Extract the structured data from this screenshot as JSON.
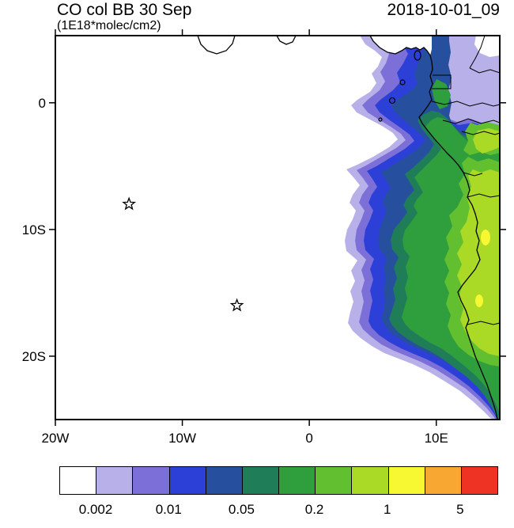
{
  "header": {
    "title": "CO col BB 30 Sep",
    "units": "(1E18*molec/cm2)",
    "datetime": "2018-10-01_09"
  },
  "chart_data": {
    "type": "heatmap",
    "title": "CO col BB 30 Sep",
    "units_label": "(1E18*molec/cm2)",
    "timestamp_label": "2018-10-01_09",
    "description": "Filled-contour lat-lon map of biomass-burning CO column over the South Atlantic and central-southern Africa; plume extends west from the Angola/Congo coast",
    "lon_range": [
      -20,
      15
    ],
    "lat_range": [
      5.3,
      -25.0
    ],
    "x_ticks": [
      {
        "lon": -20,
        "label": "20W"
      },
      {
        "lon": -10,
        "label": "10W"
      },
      {
        "lon": 0,
        "label": "0"
      },
      {
        "lon": 10,
        "label": "10E"
      }
    ],
    "y_ticks": [
      {
        "lat": 0,
        "label": "0"
      },
      {
        "lat": -10,
        "label": "10S"
      },
      {
        "lat": -20,
        "label": "20S"
      }
    ],
    "contour_levels": [
      0.002,
      0.005,
      0.01,
      0.02,
      0.05,
      0.1,
      0.2,
      0.5,
      1,
      2,
      5
    ],
    "palette": [
      "#ffffff",
      "#b8b0e8",
      "#7c70d8",
      "#2c40d8",
      "#26509e",
      "#1f7e58",
      "#2f9e3c",
      "#62c030",
      "#aad926",
      "#f8f832",
      "#f8a832",
      "#ee3224"
    ],
    "colorbar_labels": [
      {
        "text": "0.002",
        "boundary_index": 1
      },
      {
        "text": "0.01",
        "boundary_index": 3
      },
      {
        "text": "0.05",
        "boundary_index": 5
      },
      {
        "text": "0.2",
        "boundary_index": 7
      },
      {
        "text": "1",
        "boundary_index": 9
      },
      {
        "text": "5",
        "boundary_index": 11
      }
    ],
    "markers": [
      {
        "name": "station-star-1",
        "lon": -14.2,
        "lat": -8.0
      },
      {
        "name": "station-star-2",
        "lon": -5.7,
        "lat": -16.0
      }
    ],
    "line_color": "#000000"
  }
}
